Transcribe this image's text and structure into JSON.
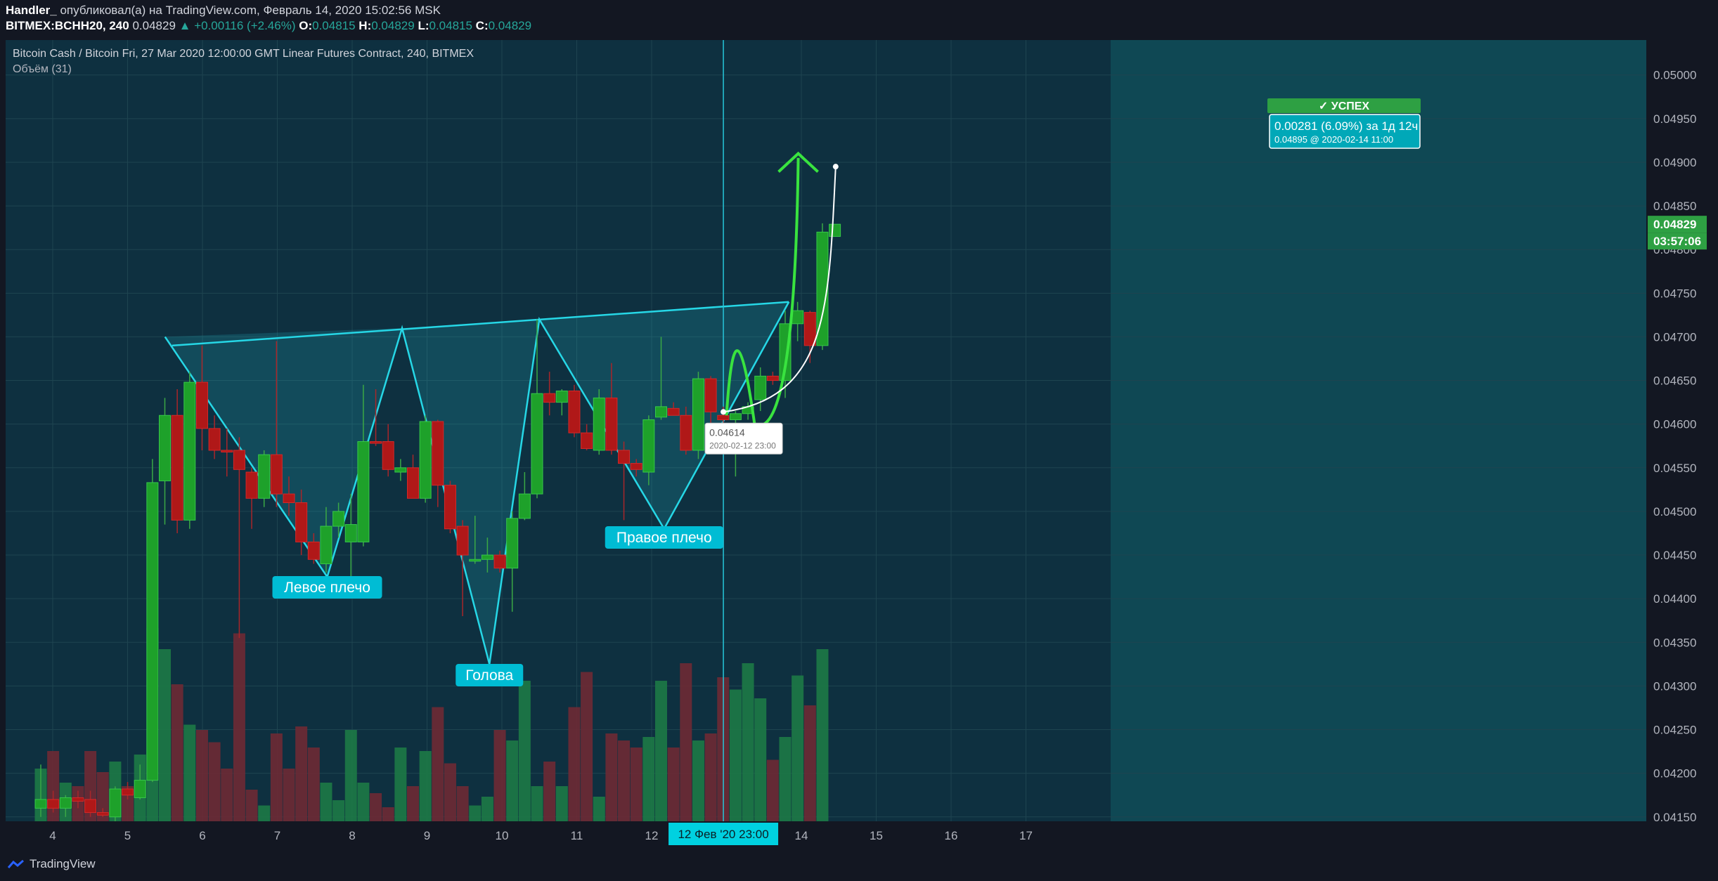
{
  "header": {
    "line1_user": "Handler_",
    "line1_text": " опубликовал(а) на TradingView.com, Февраль 14, 2020 15:02:56 MSK",
    "symbol": "BITMEX:BCHH20, 240",
    "last": "0.04829",
    "change": "▲ +0.00116 (+2.46%)",
    "o_label": "O:",
    "o": "0.04815",
    "h_label": "H:",
    "h": "0.04829",
    "l_label": "L:",
    "l": "0.04815",
    "c_label": "C:",
    "c": "0.04829"
  },
  "legend": {
    "title": "Bitcoin Cash / Bitcoin Fri, 27 Mar 2020 12:00:00 GMT Linear Futures Contract, 240, BITMEX",
    "volume": "Объём (31)"
  },
  "brand": "TradingView",
  "chart_data": {
    "type": "candlestick",
    "ylim": [
      0.04145,
      0.0504
    ],
    "y_ticks": [
      "0.05000",
      "0.04950",
      "0.04900",
      "0.04850",
      "0.04800",
      "0.04750",
      "0.04700",
      "0.04650",
      "0.04600",
      "0.04550",
      "0.04500",
      "0.04450",
      "0.04400",
      "0.04350",
      "0.04300",
      "0.04250",
      "0.04200",
      "0.04150"
    ],
    "x_ticks": [
      {
        "label": "4",
        "day": 4
      },
      {
        "label": "5",
        "day": 5
      },
      {
        "label": "6",
        "day": 6
      },
      {
        "label": "7",
        "day": 7
      },
      {
        "label": "8",
        "day": 8
      },
      {
        "label": "9",
        "day": 9
      },
      {
        "label": "10",
        "day": 10
      },
      {
        "label": "11",
        "day": 11
      },
      {
        "label": "12",
        "day": 12
      },
      {
        "label": "14",
        "day": 14
      },
      {
        "label": "15",
        "day": 15
      },
      {
        "label": "16",
        "day": 16
      },
      {
        "label": "17",
        "day": 17
      }
    ],
    "crosshair_label": "12 Фев '20   23:00",
    "price_label": "0.04829",
    "countdown_label": "03:57:06",
    "candles": [
      {
        "o": 0.0416,
        "h": 0.0421,
        "l": 0.0415,
        "c": 0.0417
      },
      {
        "o": 0.0417,
        "h": 0.0418,
        "l": 0.04155,
        "c": 0.0416
      },
      {
        "o": 0.0416,
        "h": 0.04175,
        "l": 0.0415,
        "c": 0.04172
      },
      {
        "o": 0.04172,
        "h": 0.0418,
        "l": 0.0416,
        "c": 0.04168
      },
      {
        "o": 0.0417,
        "h": 0.0418,
        "l": 0.0415,
        "c": 0.04155
      },
      {
        "o": 0.04155,
        "h": 0.0416,
        "l": 0.0415,
        "c": 0.04152
      },
      {
        "o": 0.0415,
        "h": 0.04185,
        "l": 0.04145,
        "c": 0.04182
      },
      {
        "o": 0.04182,
        "h": 0.0419,
        "l": 0.0417,
        "c": 0.04175
      },
      {
        "o": 0.04172,
        "h": 0.0421,
        "l": 0.0417,
        "c": 0.04192
      },
      {
        "o": 0.04192,
        "h": 0.0456,
        "l": 0.0419,
        "c": 0.04533
      },
      {
        "o": 0.04535,
        "h": 0.0463,
        "l": 0.04485,
        "c": 0.0461
      },
      {
        "o": 0.0461,
        "h": 0.0464,
        "l": 0.04475,
        "c": 0.0449
      },
      {
        "o": 0.0449,
        "h": 0.0466,
        "l": 0.0448,
        "c": 0.04648
      },
      {
        "o": 0.04648,
        "h": 0.0469,
        "l": 0.0457,
        "c": 0.04595
      },
      {
        "o": 0.04595,
        "h": 0.0461,
        "l": 0.0456,
        "c": 0.0457
      },
      {
        "o": 0.0457,
        "h": 0.04595,
        "l": 0.0454,
        "c": 0.04568
      },
      {
        "o": 0.0457,
        "h": 0.04585,
        "l": 0.04355,
        "c": 0.04548
      },
      {
        "o": 0.04545,
        "h": 0.0455,
        "l": 0.0448,
        "c": 0.04515
      },
      {
        "o": 0.04515,
        "h": 0.0457,
        "l": 0.04505,
        "c": 0.04565
      },
      {
        "o": 0.04565,
        "h": 0.04695,
        "l": 0.04505,
        "c": 0.0452
      },
      {
        "o": 0.0452,
        "h": 0.0454,
        "l": 0.04495,
        "c": 0.0451
      },
      {
        "o": 0.0451,
        "h": 0.04525,
        "l": 0.0445,
        "c": 0.04465
      },
      {
        "o": 0.04465,
        "h": 0.04475,
        "l": 0.0444,
        "c": 0.04445
      },
      {
        "o": 0.0444,
        "h": 0.04505,
        "l": 0.0443,
        "c": 0.04483
      },
      {
        "o": 0.04483,
        "h": 0.0451,
        "l": 0.0447,
        "c": 0.045
      },
      {
        "o": 0.04465,
        "h": 0.0452,
        "l": 0.04425,
        "c": 0.04485
      },
      {
        "o": 0.04465,
        "h": 0.04645,
        "l": 0.0446,
        "c": 0.0458
      },
      {
        "o": 0.0458,
        "h": 0.0464,
        "l": 0.04575,
        "c": 0.04578
      },
      {
        "o": 0.0458,
        "h": 0.046,
        "l": 0.0454,
        "c": 0.04548
      },
      {
        "o": 0.04545,
        "h": 0.0456,
        "l": 0.04535,
        "c": 0.0455
      },
      {
        "o": 0.0455,
        "h": 0.04565,
        "l": 0.04515,
        "c": 0.04515
      },
      {
        "o": 0.04515,
        "h": 0.0461,
        "l": 0.0451,
        "c": 0.04603
      },
      {
        "o": 0.04603,
        "h": 0.04605,
        "l": 0.04505,
        "c": 0.0453
      },
      {
        "o": 0.0453,
        "h": 0.04535,
        "l": 0.04475,
        "c": 0.0448
      },
      {
        "o": 0.04483,
        "h": 0.0449,
        "l": 0.0438,
        "c": 0.0445
      },
      {
        "o": 0.04443,
        "h": 0.04495,
        "l": 0.0444,
        "c": 0.04445
      },
      {
        "o": 0.04445,
        "h": 0.0447,
        "l": 0.0443,
        "c": 0.0445
      },
      {
        "o": 0.0445,
        "h": 0.04455,
        "l": 0.0443,
        "c": 0.04435
      },
      {
        "o": 0.04435,
        "h": 0.045,
        "l": 0.04385,
        "c": 0.04492
      },
      {
        "o": 0.04492,
        "h": 0.04545,
        "l": 0.0449,
        "c": 0.0452
      },
      {
        "o": 0.0452,
        "h": 0.0472,
        "l": 0.04515,
        "c": 0.04635
      },
      {
        "o": 0.04635,
        "h": 0.0466,
        "l": 0.0461,
        "c": 0.04625
      },
      {
        "o": 0.04625,
        "h": 0.0464,
        "l": 0.0461,
        "c": 0.04638
      },
      {
        "o": 0.04638,
        "h": 0.04645,
        "l": 0.04585,
        "c": 0.0459
      },
      {
        "o": 0.0459,
        "h": 0.046,
        "l": 0.0457,
        "c": 0.04572
      },
      {
        "o": 0.0457,
        "h": 0.0464,
        "l": 0.04565,
        "c": 0.0463
      },
      {
        "o": 0.0463,
        "h": 0.0467,
        "l": 0.04565,
        "c": 0.0457
      },
      {
        "o": 0.0457,
        "h": 0.0458,
        "l": 0.0449,
        "c": 0.04555
      },
      {
        "o": 0.04555,
        "h": 0.0456,
        "l": 0.0454,
        "c": 0.04548
      },
      {
        "o": 0.04545,
        "h": 0.0461,
        "l": 0.0453,
        "c": 0.04605
      },
      {
        "o": 0.04608,
        "h": 0.047,
        "l": 0.04605,
        "c": 0.0462
      },
      {
        "o": 0.04618,
        "h": 0.04625,
        "l": 0.04612,
        "c": 0.0461
      },
      {
        "o": 0.0461,
        "h": 0.0462,
        "l": 0.04565,
        "c": 0.0457
      },
      {
        "o": 0.0457,
        "h": 0.0466,
        "l": 0.0456,
        "c": 0.04652
      },
      {
        "o": 0.04652,
        "h": 0.04655,
        "l": 0.04595,
        "c": 0.04614
      },
      {
        "o": 0.0461,
        "h": 0.0462,
        "l": 0.046,
        "c": 0.04605
      },
      {
        "o": 0.04605,
        "h": 0.04615,
        "l": 0.0454,
        "c": 0.04612
      },
      {
        "o": 0.04612,
        "h": 0.04625,
        "l": 0.04605,
        "c": 0.0462
      },
      {
        "o": 0.04628,
        "h": 0.04665,
        "l": 0.04615,
        "c": 0.04655
      },
      {
        "o": 0.04655,
        "h": 0.0466,
        "l": 0.04645,
        "c": 0.0465
      },
      {
        "o": 0.0465,
        "h": 0.0473,
        "l": 0.0463,
        "c": 0.04715
      },
      {
        "o": 0.04715,
        "h": 0.0474,
        "l": 0.04695,
        "c": 0.0473
      },
      {
        "o": 0.04728,
        "h": 0.0473,
        "l": 0.0467,
        "c": 0.0469
      },
      {
        "o": 0.0469,
        "h": 0.0483,
        "l": 0.04685,
        "c": 0.0482
      },
      {
        "o": 0.04815,
        "h": 0.04829,
        "l": 0.04815,
        "c": 0.04829
      }
    ],
    "volumes": [
      30,
      40,
      22,
      20,
      40,
      28,
      34,
      20,
      38,
      110,
      98,
      78,
      55,
      52,
      45,
      30,
      107,
      18,
      9,
      50,
      30,
      54,
      42,
      22,
      12,
      52,
      22,
      16,
      8,
      42,
      20,
      40,
      65,
      33,
      20,
      9,
      14,
      52,
      46,
      80,
      20,
      34,
      20,
      65,
      85,
      14,
      50,
      46,
      42,
      48,
      80,
      42,
      90,
      46,
      50,
      82,
      75,
      90,
      70,
      35,
      48,
      83,
      66,
      98,
      0
    ]
  },
  "annotations": {
    "left_shoulder": "Левое плечо",
    "head": "Голова",
    "right_shoulder": "Правое плечо",
    "success": "✓ УСПЕХ",
    "measure_main": "0.00281 (6.09%) за 1д 12ч",
    "measure_sub": "0.04895 @ 2020-02-14  11:00",
    "point_price": "0.04614",
    "point_date": "2020-02-12 23:00"
  }
}
